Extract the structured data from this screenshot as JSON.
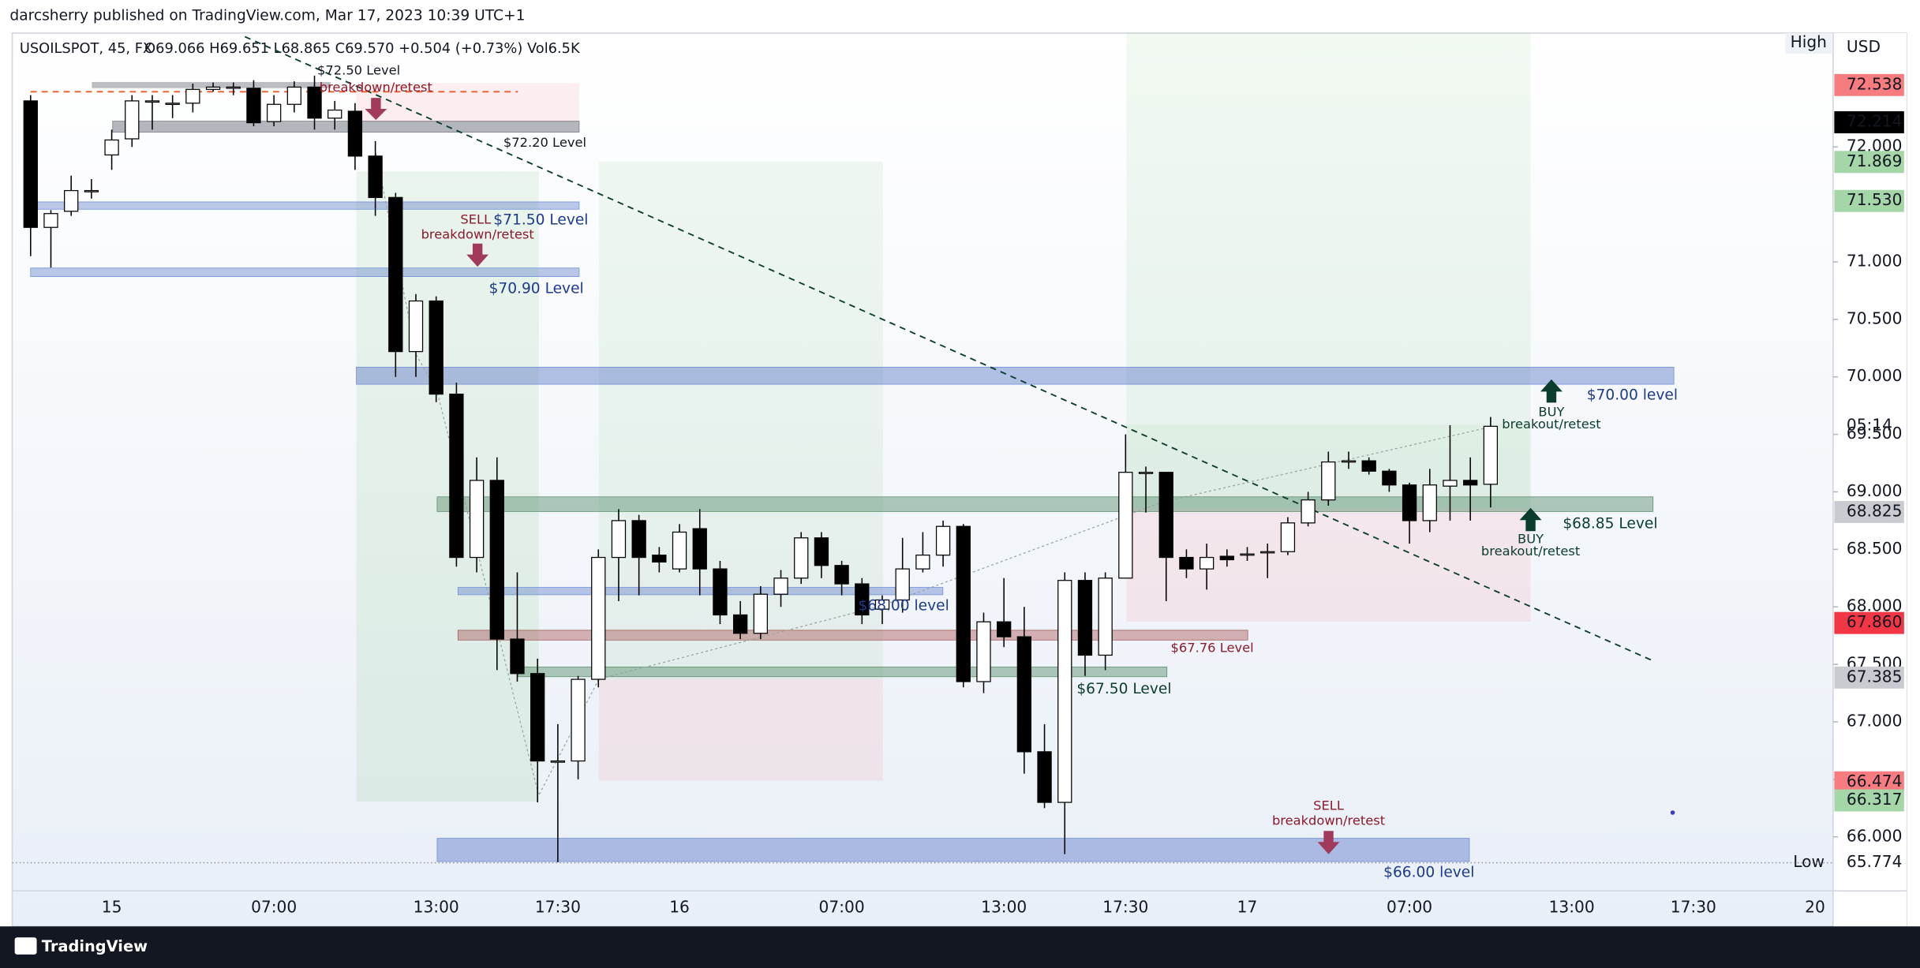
{
  "chart_data": {
    "type": "candlestick",
    "publisher": "darcsherry published on TradingView.com, Mar 17, 2023 10:39 UTC+1",
    "symbol": "USOILSPOT, 45, FX",
    "legend_ohlc": "O69.066 H69.651 L68.865 C69.570 +0.504 (+0.73%) Vol6.5K",
    "footer": "TradingView",
    "currency": "USD",
    "high_label": "High",
    "low_label": "Low",
    "countdown": "05:14",
    "up_color": "#ffffff",
    "down_color": "#000000",
    "wick_color": "#000000",
    "categories": [
      null,
      null,
      null,
      null,
      "15",
      null,
      null,
      null,
      null,
      null,
      null,
      null,
      "07:00",
      null,
      null,
      null,
      null,
      null,
      null,
      null,
      "13:00",
      null,
      null,
      null,
      null,
      null,
      "17:30",
      null,
      null,
      null,
      null,
      null,
      "16",
      null,
      null,
      null,
      null,
      null,
      null,
      null,
      "07:00",
      null,
      null,
      null,
      null,
      null,
      null,
      null,
      "13:00",
      null,
      null,
      null,
      null,
      null,
      "17:30",
      null,
      null,
      null,
      null,
      null,
      "17",
      null,
      null,
      null,
      null,
      null,
      null,
      null,
      "07:00",
      null,
      null,
      null,
      null,
      null,
      null,
      null,
      "13:00",
      null,
      null,
      null,
      null,
      null,
      "17:30",
      null,
      null,
      null,
      null,
      null,
      "20"
    ],
    "open": [
      72.4,
      71.3,
      71.44,
      71.62,
      71.93,
      72.07,
      72.39,
      72.38,
      72.38,
      72.5,
      72.51,
      72.51,
      72.22,
      72.37,
      72.52,
      72.25,
      72.31,
      71.92,
      71.56,
      70.22,
      70.66,
      69.85,
      68.43,
      69.1,
      67.72,
      67.42,
      66.66,
      66.66,
      67.37,
      68.43,
      68.75,
      68.45,
      68.33,
      68.68,
      68.33,
      67.93,
      67.77,
      68.11,
      68.25,
      68.6,
      68.36,
      68.2,
      67.98,
      68.06,
      68.33,
      68.45,
      68.7,
      67.35,
      67.87,
      67.74,
      66.74,
      66.3,
      68.23,
      67.58,
      68.25,
      69.17,
      69.17,
      68.43,
      68.33,
      68.44,
      68.46,
      68.48,
      68.48,
      68.73,
      68.93,
      69.27,
      69.27,
      69.18,
      69.06,
      68.75,
      69.05,
      69.1,
      69.066,
      null,
      null,
      null,
      null,
      null,
      null,
      null,
      null,
      null,
      null,
      null,
      null,
      null,
      null,
      null,
      null
    ],
    "high": [
      72.45,
      71.45,
      71.75,
      71.72,
      72.15,
      72.45,
      72.45,
      72.45,
      72.55,
      72.56,
      72.56,
      72.58,
      72.45,
      72.57,
      72.62,
      72.4,
      72.38,
      72.05,
      71.6,
      70.72,
      70.7,
      69.95,
      69.3,
      69.3,
      68.3,
      67.55,
      66.98,
      67.4,
      68.5,
      68.85,
      68.8,
      68.52,
      68.72,
      68.85,
      68.4,
      68.05,
      68.18,
      68.32,
      68.65,
      68.65,
      68.4,
      68.25,
      68.1,
      68.6,
      68.65,
      68.75,
      68.72,
      67.95,
      68.25,
      68.0,
      66.98,
      68.3,
      68.3,
      68.3,
      69.5,
      69.22,
      69.17,
      68.5,
      68.55,
      68.5,
      68.52,
      68.55,
      68.78,
      69.0,
      69.35,
      69.35,
      69.3,
      69.2,
      69.08,
      69.2,
      69.58,
      69.3,
      69.651,
      null,
      null,
      null,
      null,
      null,
      null,
      null,
      null,
      null,
      null,
      null,
      null,
      null,
      null,
      null,
      null
    ],
    "low": [
      71.05,
      70.95,
      71.4,
      71.55,
      71.8,
      72.0,
      72.15,
      72.25,
      72.3,
      72.48,
      72.45,
      72.18,
      72.18,
      72.3,
      72.15,
      72.15,
      71.8,
      71.4,
      70.0,
      70.0,
      69.78,
      68.35,
      68.3,
      67.45,
      67.35,
      66.3,
      65.78,
      66.5,
      67.3,
      68.05,
      68.1,
      68.3,
      68.3,
      68.1,
      67.85,
      67.72,
      67.72,
      68.0,
      68.2,
      68.25,
      68.1,
      67.85,
      67.85,
      67.95,
      68.3,
      68.35,
      67.3,
      67.25,
      67.65,
      66.55,
      66.25,
      65.85,
      67.4,
      67.45,
      68.25,
      68.82,
      68.05,
      68.25,
      68.15,
      68.35,
      68.4,
      68.25,
      68.45,
      68.7,
      68.88,
      69.2,
      69.15,
      69.0,
      68.55,
      68.65,
      68.75,
      68.75,
      68.865,
      null,
      null,
      null,
      null,
      null,
      null,
      null,
      null,
      null,
      null,
      null,
      null,
      null,
      null,
      null,
      null
    ],
    "close": [
      71.3,
      71.42,
      71.62,
      71.62,
      72.06,
      72.4,
      72.4,
      72.38,
      72.5,
      72.52,
      72.52,
      72.21,
      72.37,
      72.52,
      72.25,
      72.32,
      71.92,
      71.56,
      70.22,
      70.66,
      69.85,
      68.43,
      69.1,
      67.72,
      67.42,
      66.66,
      66.66,
      67.37,
      68.43,
      68.75,
      68.43,
      68.39,
      68.65,
      68.33,
      67.93,
      67.77,
      68.11,
      68.25,
      68.6,
      68.36,
      68.2,
      67.93,
      68.06,
      68.33,
      68.45,
      68.7,
      67.35,
      67.87,
      67.74,
      66.74,
      66.3,
      68.23,
      67.58,
      68.25,
      69.17,
      69.17,
      68.43,
      68.33,
      68.43,
      68.41,
      68.46,
      68.48,
      68.73,
      68.93,
      69.26,
      69.27,
      69.18,
      69.06,
      68.75,
      69.06,
      69.1,
      69.06,
      69.57,
      null,
      null,
      null,
      null,
      null,
      null,
      null,
      null,
      null,
      null,
      null,
      null,
      null,
      null,
      null,
      null
    ],
    "ylim": [
      65.53,
      72.99
    ],
    "yticks": [
      {
        "value": 66,
        "label": "66.000"
      },
      {
        "value": 66.5,
        "label": "66.500"
      },
      {
        "value": 67,
        "label": "67.000"
      },
      {
        "value": 67.5,
        "label": "67.500"
      },
      {
        "value": 68,
        "label": "68.000"
      },
      {
        "value": 68.5,
        "label": "68.500"
      },
      {
        "value": 69,
        "label": "69.000"
      },
      {
        "value": 69.5,
        "label": "69.500"
      },
      {
        "value": 70,
        "label": "70.000"
      },
      {
        "value": 70.5,
        "label": "70.500"
      },
      {
        "value": 71,
        "label": "71.000"
      },
      {
        "value": 72,
        "label": "72.000"
      }
    ],
    "price_labels": [
      {
        "value": 72.538,
        "bg": "#f77c80",
        "fg": "#ffffff"
      },
      {
        "value": 72.214,
        "bg": "#000000",
        "fg": "#ffffff"
      },
      {
        "value": 71.869,
        "bg": "#a5d6a7",
        "fg": "#131722"
      },
      {
        "value": 71.53,
        "label": "71.530",
        "bg": "#a5d6a7",
        "fg": "#131722"
      },
      {
        "value": 68.825,
        "bg": "#c9cbd1",
        "fg": "#131722"
      },
      {
        "value": 67.86,
        "label": "67.860",
        "bg": "#f23645",
        "fg": "#ffffff"
      },
      {
        "value": 67.385,
        "bg": "#c9cbd1",
        "fg": "#131722"
      },
      {
        "value": 66.474,
        "bg": "#f77c80",
        "fg": "#ffffff"
      },
      {
        "value": 66.317,
        "bg": "#a5d6a7",
        "fg": "#131722"
      },
      {
        "value": 65.774,
        "bg": "none",
        "fg": "#131722"
      }
    ],
    "annotations": [
      {
        "text": "$72.50 Level",
        "color": "#131722"
      },
      {
        "text": "breakdown/retest",
        "color": "#8b1a2b"
      },
      {
        "text": "$72.20 Level",
        "color": "#131722"
      },
      {
        "text": "SELL",
        "color": "#8b1a2b"
      },
      {
        "text": "$71.50 Level",
        "color": "#1e3a8a"
      },
      {
        "text": "breakdown/retest",
        "color": "#8b1a2b"
      },
      {
        "text": "$70.90 Level",
        "color": "#1e3a8a"
      },
      {
        "text": "$70.00 level",
        "color": "#1e3a8a"
      },
      {
        "text": "BUY",
        "color": "#0b3d2e"
      },
      {
        "text": "breakout/retest",
        "color": "#0b3d2e"
      },
      {
        "text": "$68.85 Level",
        "color": "#0b3d2e"
      },
      {
        "text": "BUY",
        "color": "#0b3d2e"
      },
      {
        "text": "breakout/retest",
        "color": "#0b3d2e"
      },
      {
        "text": "$68.00 level",
        "color": "#1e3a8a"
      },
      {
        "text": "$67.76 Level",
        "color": "#8b1a2b"
      },
      {
        "text": "$67.50 Level",
        "color": "#0b3d2e"
      },
      {
        "text": "SELL",
        "color": "#8b1a2b"
      },
      {
        "text": "breakdown/retest",
        "color": "#8b1a2b"
      },
      {
        "text": "$66.00 level",
        "color": "#1e3a8a"
      }
    ]
  }
}
